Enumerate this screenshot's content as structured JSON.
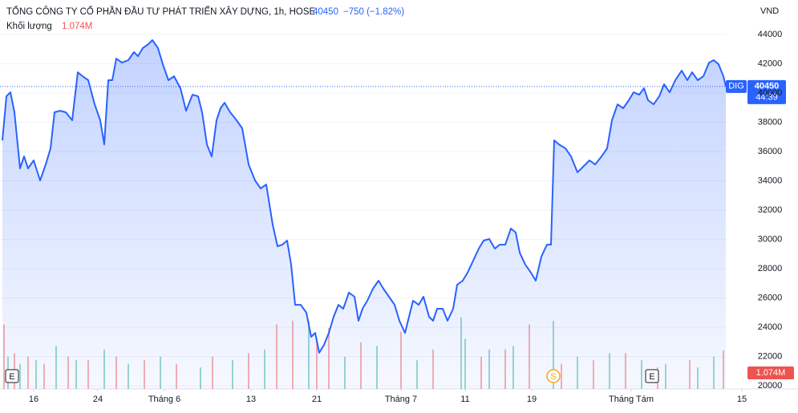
{
  "chart_data": {
    "type": "area",
    "title": "TỔNG CÔNG TY CỔ PHẦN ĐẦU TƯ PHÁT TRIỂN XÂY DỰNG, 1h, HOSE",
    "last_price": 40450,
    "change": "−750 (−1.82%)",
    "symbol": "DIG",
    "countdown": "44:39",
    "currency": "VND",
    "volume_title": "Khối lượng",
    "volume_label": "1.074M",
    "ylim": [
      19780,
      46360
    ],
    "yticks": [
      20000,
      22000,
      24000,
      26000,
      28000,
      30000,
      32000,
      34000,
      36000,
      38000,
      40000,
      42000,
      44000
    ],
    "grid": true,
    "xlim": [
      0,
      940
    ],
    "xticks": [
      {
        "value": 42,
        "label": "16"
      },
      {
        "value": 122,
        "label": "24"
      },
      {
        "value": 205,
        "label": "Tháng 6"
      },
      {
        "value": 313,
        "label": "13"
      },
      {
        "value": 395,
        "label": "21"
      },
      {
        "value": 500,
        "label": "Tháng 7"
      },
      {
        "value": 580,
        "label": "11"
      },
      {
        "value": 663,
        "label": "19"
      },
      {
        "value": 787,
        "label": "Tháng Tám"
      },
      {
        "value": 925,
        "label": "15"
      }
    ],
    "series": [
      {
        "color": "#2962ff",
        "x": [
          3,
          8,
          13,
          18,
          25,
          30,
          35,
          42,
          50,
          57,
          63,
          68,
          75,
          82,
          90,
          97,
          103,
          110,
          118,
          125,
          130,
          135,
          140,
          145,
          152,
          160,
          167,
          172,
          178,
          185,
          190,
          197,
          203,
          210,
          217,
          225,
          232,
          240,
          247,
          252,
          258,
          264,
          270,
          275,
          280,
          287,
          295,
          302,
          310,
          318,
          325,
          332,
          340,
          346,
          352,
          358,
          363,
          368,
          375,
          382,
          388,
          393,
          398,
          404,
          410,
          416,
          422,
          428,
          435,
          442,
          447,
          452,
          458,
          465,
          472,
          478,
          485,
          492,
          498,
          505,
          510,
          515,
          522,
          528,
          535,
          540,
          545,
          552,
          558,
          565,
          570,
          577,
          583,
          590,
          597,
          603,
          610,
          617,
          623,
          630,
          637,
          643,
          648,
          655,
          662,
          668,
          675,
          682,
          687,
          691,
          697,
          705,
          712,
          720,
          727,
          735,
          742,
          750,
          757,
          763,
          770,
          777,
          784,
          790,
          797,
          803,
          808,
          815,
          822,
          828,
          835,
          842,
          850,
          857,
          863,
          870,
          877,
          884,
          890,
          896,
          902,
          905
        ],
        "values": [
          36770,
          39780,
          40050,
          38690,
          34850,
          35670,
          34850,
          35400,
          34030,
          35120,
          36220,
          38690,
          38790,
          38690,
          38140,
          41420,
          41150,
          40880,
          39230,
          38140,
          36490,
          40880,
          40880,
          42360,
          42080,
          42250,
          42800,
          42520,
          43070,
          43340,
          43620,
          43070,
          41970,
          40880,
          41150,
          40330,
          38790,
          39890,
          39780,
          38690,
          36490,
          35670,
          38140,
          38960,
          39340,
          38690,
          38140,
          37590,
          35120,
          34030,
          33480,
          33750,
          31010,
          29530,
          29640,
          29920,
          28270,
          25530,
          25530,
          24990,
          23340,
          23610,
          22250,
          22790,
          23610,
          24710,
          25530,
          25260,
          26360,
          26080,
          24440,
          25260,
          25810,
          26630,
          27180,
          26630,
          26080,
          25530,
          24440,
          23610,
          24710,
          25810,
          25530,
          26080,
          24710,
          24440,
          25260,
          25260,
          24440,
          25260,
          26900,
          27180,
          27730,
          28550,
          29370,
          29920,
          30030,
          29370,
          29640,
          29640,
          30740,
          30470,
          29100,
          28270,
          27730,
          27180,
          28820,
          29640,
          29640,
          36770,
          36490,
          36220,
          35670,
          34580,
          34960,
          35400,
          35120,
          35670,
          36220,
          38140,
          39230,
          38960,
          39510,
          40050,
          39890,
          40330,
          39510,
          39230,
          39780,
          40600,
          40050,
          40880,
          41530,
          40880,
          41420,
          40880,
          41150,
          42080,
          42250,
          41970,
          41150,
          40450
        ]
      }
    ],
    "volume_ylim": [
      0,
      10.85
    ],
    "volume_up": {
      "color": "#26a69a",
      "x": [
        10,
        25,
        45,
        70,
        95,
        130,
        160,
        200,
        250,
        290,
        330,
        385,
        430,
        470,
        520,
        575,
        580,
        610,
        640,
        690,
        720,
        760,
        800,
        830,
        870,
        890
      ],
      "values": [
        0.9,
        0.7,
        0.8,
        1.2,
        0.8,
        1.1,
        0.7,
        0.9,
        0.6,
        0.8,
        1.1,
        1.9,
        0.9,
        1.2,
        0.8,
        2.0,
        1.4,
        1.1,
        1.2,
        1.9,
        0.9,
        1.0,
        0.8,
        0.7,
        0.6,
        0.9
      ]
    },
    "volume_down": {
      "color": "#ef5350",
      "x": [
        5,
        18,
        35,
        55,
        85,
        110,
        145,
        180,
        220,
        265,
        310,
        345,
        365,
        395,
        410,
        450,
        500,
        540,
        600,
        630,
        660,
        700,
        740,
        780,
        820,
        860,
        902
      ],
      "values": [
        1.8,
        1.0,
        0.9,
        0.7,
        0.9,
        0.8,
        0.9,
        0.8,
        0.7,
        0.9,
        1.0,
        1.8,
        1.9,
        1.4,
        1.7,
        1.3,
        1.6,
        1.1,
        0.9,
        1.1,
        1.8,
        0.7,
        0.8,
        1.0,
        0.6,
        0.8,
        1.074
      ]
    },
    "events": [
      {
        "x": 15,
        "label": "E"
      },
      {
        "x": 690,
        "label": "S"
      },
      {
        "x": 813,
        "label": "E"
      }
    ]
  }
}
